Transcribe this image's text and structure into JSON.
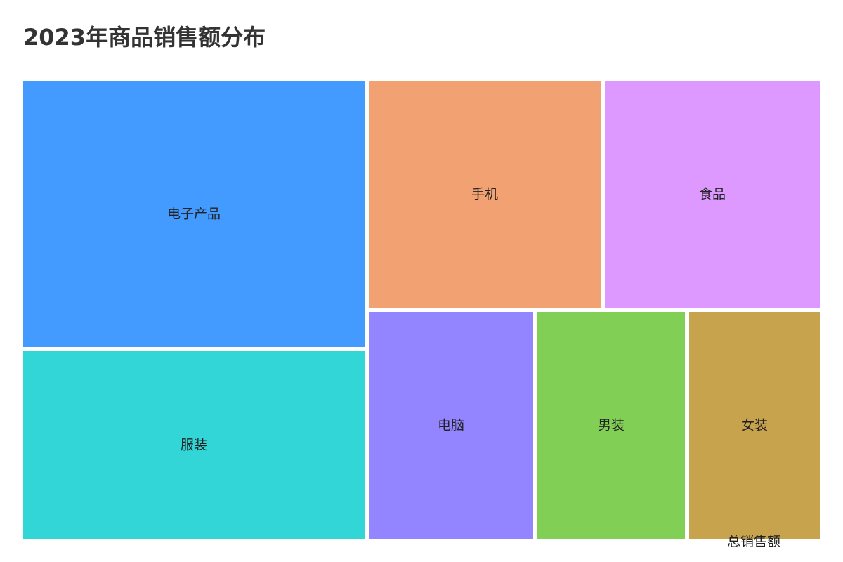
{
  "chart_data": {
    "type": "treemap",
    "title": "2023年商品销售额分布",
    "value_label": "总销售额",
    "tiles": [
      {
        "name": "电子产品",
        "color": "#449bff"
      },
      {
        "name": "服装",
        "color": "#33d6d6"
      },
      {
        "name": "手机",
        "color": "#f2a272"
      },
      {
        "name": "食品",
        "color": "#dd99ff"
      },
      {
        "name": "电脑",
        "color": "#9285ff"
      },
      {
        "name": "男装",
        "color": "#82cf56"
      },
      {
        "name": "女装",
        "color": "#c8a34e"
      }
    ]
  }
}
